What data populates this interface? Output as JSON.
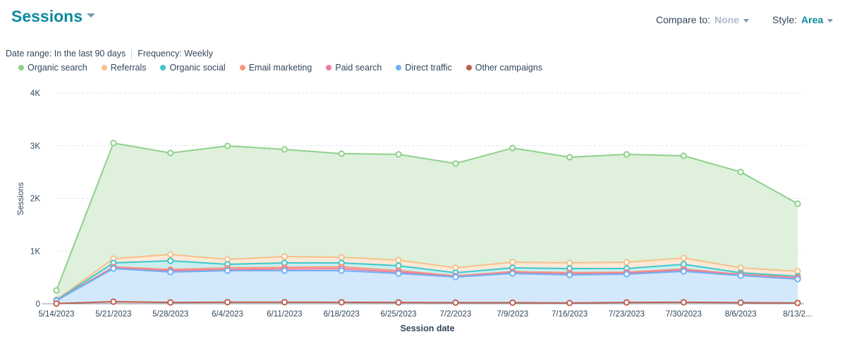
{
  "header": {
    "title": "Sessions",
    "compare_label": "Compare to:",
    "compare_value": "None",
    "style_label": "Style:",
    "style_value": "Area"
  },
  "meta": {
    "date_range": "Date range: In the last 90 days",
    "frequency": "Frequency: Weekly"
  },
  "chart_data": {
    "type": "area",
    "stacked": true,
    "xlabel": "Session date",
    "ylabel": "Sessions",
    "ylim": [
      0,
      4000
    ],
    "yticks": [
      {
        "v": 0,
        "label": "0"
      },
      {
        "v": 1000,
        "label": "1K"
      },
      {
        "v": 2000,
        "label": "2K"
      },
      {
        "v": 3000,
        "label": "3K"
      },
      {
        "v": 4000,
        "label": "4K"
      }
    ],
    "grid": true,
    "legend": "top-left",
    "categories": [
      "5/14/2023",
      "5/21/2023",
      "5/28/2023",
      "6/4/2023",
      "6/11/2023",
      "6/18/2023",
      "6/25/2023",
      "7/2/2023",
      "7/9/2023",
      "7/16/2023",
      "7/23/2023",
      "7/30/2023",
      "8/6/2023",
      "8/13/2..."
    ],
    "series": [
      {
        "name": "Other campaigns",
        "color": "#c0604d",
        "fill": "#f2d6d0",
        "values": [
          5,
          40,
          25,
          30,
          30,
          28,
          25,
          22,
          22,
          15,
          25,
          28,
          22,
          15
        ]
      },
      {
        "name": "Direct traffic",
        "color": "#6fb1f5",
        "fill": "#d4e8fb",
        "values": [
          55,
          629,
          577,
          599,
          599,
          601,
          550,
          486,
          553,
          533,
          537,
          587,
          513,
          453
        ]
      },
      {
        "name": "Paid search",
        "color": "#ea7fa0",
        "fill": "#fadbe5",
        "values": [
          2,
          16,
          23,
          21,
          31,
          36,
          25,
          12,
          15,
          17,
          18,
          25,
          10,
          17
        ]
      },
      {
        "name": "Email marketing",
        "color": "#f7957e",
        "fill": "#fde0d8",
        "values": [
          3,
          15,
          25,
          30,
          30,
          35,
          30,
          10,
          20,
          25,
          20,
          20,
          15,
          15
        ]
      },
      {
        "name": "Organic social",
        "color": "#3cc8cc",
        "fill": "#c9eeee",
        "values": [
          5,
          76,
          166,
          69,
          86,
          76,
          92,
          59,
          72,
          79,
          69,
          89,
          29,
          22
        ]
      },
      {
        "name": "Referrals",
        "color": "#f5c08a",
        "fill": "#fde9d7",
        "values": [
          5,
          80,
          120,
          94,
          120,
          107,
          107,
          93,
          107,
          107,
          120,
          121,
          93,
          93
        ]
      },
      {
        "name": "Organic search",
        "color": "#8fd18a",
        "fill": "#dff0dd",
        "values": [
          179,
          2194,
          1927,
          2154,
          2034,
          1967,
          2007,
          1980,
          2168,
          2007,
          2047,
          1940,
          1820,
          1285
        ]
      }
    ],
    "legend_order": [
      "Organic search",
      "Referrals",
      "Organic social",
      "Email marketing",
      "Paid search",
      "Direct traffic",
      "Other campaigns"
    ]
  }
}
